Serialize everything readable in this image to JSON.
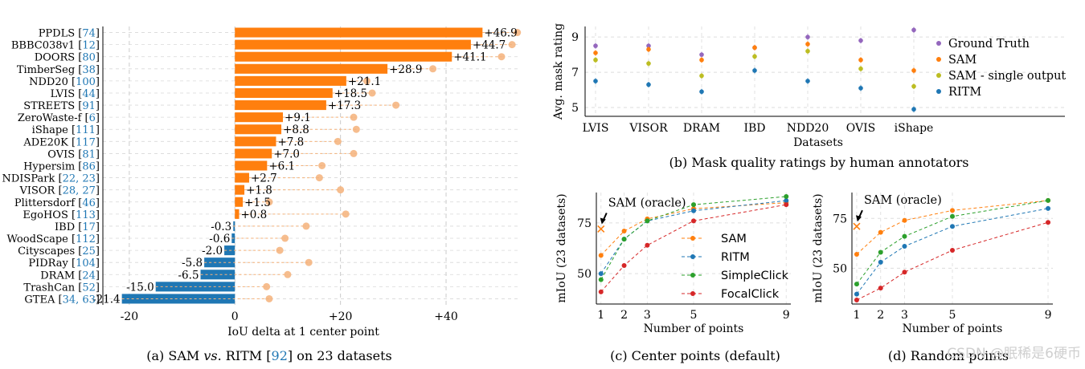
{
  "watermark": "CSDN @眠稀是6硬币",
  "chart_data": [
    {
      "id": "a",
      "type": "bar",
      "orientation": "horizontal",
      "caption": {
        "prefix": "(a) SAM ",
        "vs": "vs",
        "mid": ". RITM [",
        "ref": "92",
        "suffix": "] on 23 datasets"
      },
      "xlabel": "IoU delta at 1 center point",
      "xlim": [
        -25,
        54
      ],
      "xticks": [
        -20,
        0,
        20,
        40
      ],
      "xtick_labels": [
        "-20",
        "0",
        "+20",
        "+40"
      ],
      "grid": true,
      "categories": [
        {
          "name": "PPDLS",
          "refs": "74"
        },
        {
          "name": "BBBC038v1",
          "refs": "12"
        },
        {
          "name": "DOORS",
          "refs": "80"
        },
        {
          "name": "TimberSeg",
          "refs": "38"
        },
        {
          "name": "NDD20",
          "refs": "100"
        },
        {
          "name": "LVIS",
          "refs": "44"
        },
        {
          "name": "STREETS",
          "refs": "91"
        },
        {
          "name": "ZeroWaste-f",
          "refs": "6"
        },
        {
          "name": "iShape",
          "refs": "111"
        },
        {
          "name": "ADE20K",
          "refs": "117"
        },
        {
          "name": "OVIS",
          "refs": "81"
        },
        {
          "name": "Hypersim",
          "refs": "86"
        },
        {
          "name": "NDISPark",
          "refs": "22, 23"
        },
        {
          "name": "VISOR",
          "refs": "28, 27"
        },
        {
          "name": "Plittersdorf",
          "refs": "46"
        },
        {
          "name": "EgoHOS",
          "refs": "113"
        },
        {
          "name": "IBD",
          "refs": "17"
        },
        {
          "name": "WoodScape",
          "refs": "112"
        },
        {
          "name": "Cityscapes",
          "refs": "25"
        },
        {
          "name": "PIDRay",
          "refs": "104"
        },
        {
          "name": "DRAM",
          "refs": "24"
        },
        {
          "name": "TrashCan",
          "refs": "52"
        },
        {
          "name": "GTEA",
          "refs": "34, 63"
        }
      ],
      "values": [
        46.9,
        44.7,
        41.1,
        28.9,
        21.1,
        18.5,
        17.3,
        9.1,
        8.8,
        7.8,
        7.0,
        6.1,
        2.7,
        1.8,
        1.5,
        0.8,
        -0.3,
        -0.6,
        -2.0,
        -5.8,
        -6.5,
        -15.0,
        -21.4
      ],
      "value_labels": [
        "+46.9",
        "+44.7",
        "+41.1",
        "+28.9",
        "+21.1",
        "+18.5",
        "+17.3",
        "+9.1",
        "+8.8",
        "+7.8",
        "+7.0",
        "+6.1",
        "+2.7",
        "+1.8",
        "+1.5",
        "+0.8",
        "-0.3",
        "-0.6",
        "-2.0",
        "-5.8",
        "-6.5",
        "-15.0",
        "-21.4"
      ],
      "oracle_values": [
        53.5,
        52.5,
        50.5,
        37.5,
        25.0,
        26.0,
        30.5,
        22.5,
        23.0,
        19.5,
        22.5,
        16.5,
        16.0,
        20.0,
        6.5,
        21.0,
        13.5,
        9.5,
        8.5,
        14.0,
        10.0,
        6.0,
        6.5
      ],
      "colors": {
        "positive": "#ff7f0e",
        "negative": "#1f77b4",
        "oracle": "#f5b27a"
      }
    },
    {
      "id": "b",
      "type": "scatter",
      "caption": "(b) Mask quality ratings by human annotators",
      "xlabel": "Datasets",
      "ylabel": "Avg. mask rating",
      "categories": [
        "LVIS",
        "VISOR",
        "DRAM",
        "IBD",
        "NDD20",
        "OVIS",
        "iShape"
      ],
      "ylim": [
        4.5,
        9.6
      ],
      "yticks": [
        5,
        7,
        9
      ],
      "grid": true,
      "legend_position": "right",
      "series": [
        {
          "name": "Ground Truth",
          "color": "#9467bd",
          "values": [
            8.5,
            8.5,
            8.0,
            8.4,
            9.0,
            8.8,
            9.4
          ]
        },
        {
          "name": "SAM",
          "color": "#ff7f0e",
          "values": [
            8.1,
            8.3,
            7.7,
            8.4,
            8.6,
            7.7,
            7.1
          ]
        },
        {
          "name": "SAM - single output",
          "color": "#bcbd22",
          "values": [
            7.7,
            7.5,
            6.8,
            7.9,
            8.2,
            7.2,
            6.2
          ]
        },
        {
          "name": "RITM",
          "color": "#1f77b4",
          "values": [
            6.5,
            6.3,
            5.9,
            7.1,
            6.5,
            6.1,
            4.9
          ]
        }
      ]
    },
    {
      "id": "c",
      "type": "line",
      "caption": "(c) Center points (default)",
      "xlabel": "Number of points",
      "ylabel": "mIoU (23 datasets)",
      "x": [
        1,
        2,
        3,
        5,
        9
      ],
      "xlim": [
        0.8,
        9.2
      ],
      "ylim": [
        35,
        90
      ],
      "yticks": [
        50,
        75
      ],
      "grid": true,
      "legend_position": "right",
      "annotation": {
        "text": "SAM (oracle)",
        "x": 1,
        "y": 72
      },
      "series": [
        {
          "name": "SAM",
          "color": "#ff7f0e",
          "values": [
            59,
            71,
            77,
            82,
            85
          ]
        },
        {
          "name": "RITM",
          "color": "#1f77b4",
          "values": [
            50,
            67,
            76,
            81,
            86
          ]
        },
        {
          "name": "SimpleClick",
          "color": "#2ca02c",
          "values": [
            47,
            67,
            76,
            84,
            88
          ]
        },
        {
          "name": "FocalClick",
          "color": "#d62728",
          "values": [
            41,
            54,
            64,
            76,
            84
          ]
        }
      ]
    },
    {
      "id": "d",
      "type": "line",
      "caption": "(d) Random points",
      "xlabel": "Number of points",
      "ylabel": "mIoU (23 datasets)",
      "x": [
        1,
        2,
        3,
        5,
        9
      ],
      "xlim": [
        0.8,
        9.2
      ],
      "ylim": [
        32,
        88
      ],
      "yticks": [
        50,
        75
      ],
      "grid": true,
      "annotation": {
        "text": "SAM (oracle)",
        "x": 1,
        "y": 71
      },
      "series": [
        {
          "name": "SAM",
          "color": "#ff7f0e",
          "values": [
            57,
            68,
            74,
            79,
            84
          ]
        },
        {
          "name": "RITM",
          "color": "#1f77b4",
          "values": [
            37,
            53,
            61,
            71,
            80
          ]
        },
        {
          "name": "SimpleClick",
          "color": "#2ca02c",
          "values": [
            42,
            58,
            66,
            76,
            84
          ]
        },
        {
          "name": "FocalClick",
          "color": "#d62728",
          "values": [
            34,
            40,
            48,
            59,
            73
          ]
        }
      ]
    }
  ]
}
